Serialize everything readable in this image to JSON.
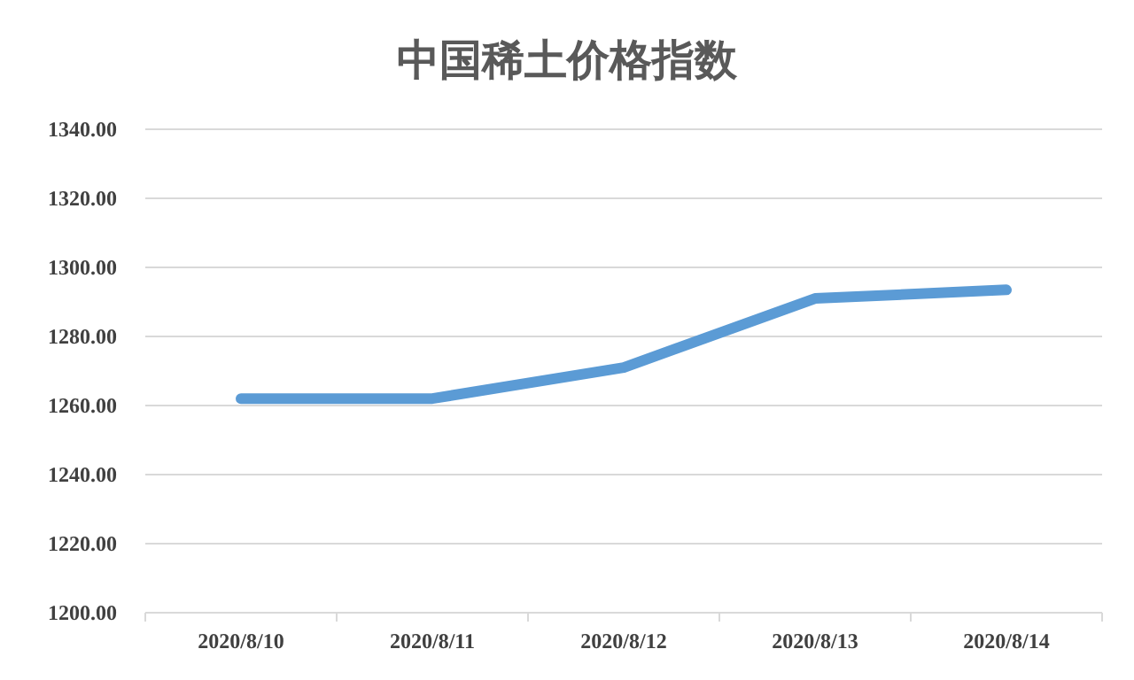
{
  "chart_data": {
    "type": "line",
    "title": "中国稀土价格指数",
    "categories": [
      "2020/8/10",
      "2020/8/11",
      "2020/8/12",
      "2020/8/13",
      "2020/8/14"
    ],
    "series": [
      {
        "color": "#5b9bd5",
        "values": [
          1262,
          1262,
          1271,
          1291,
          1293.5
        ]
      }
    ],
    "ylim": [
      1200,
      1340
    ],
    "yticks": [
      {
        "value": 1200,
        "label": "1200.00"
      },
      {
        "value": 1220,
        "label": "1220.00"
      },
      {
        "value": 1240,
        "label": "1240.00"
      },
      {
        "value": 1260,
        "label": "1260.00"
      },
      {
        "value": 1280,
        "label": "1280.00"
      },
      {
        "value": 1300,
        "label": "1300.00"
      },
      {
        "value": 1320,
        "label": "1320.00"
      },
      {
        "value": 1340,
        "label": "1340.00"
      }
    ],
    "grid": "y",
    "marker": "none",
    "line_style": "solid"
  }
}
